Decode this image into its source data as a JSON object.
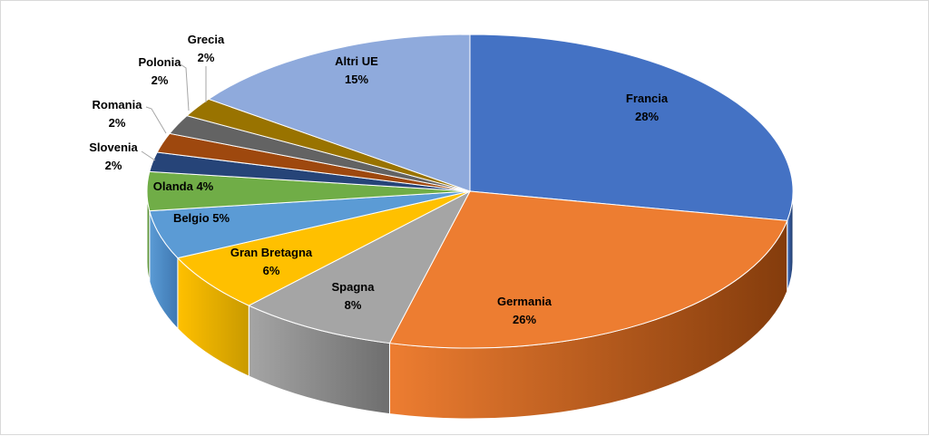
{
  "chart_data": {
    "type": "pie",
    "three_d": true,
    "legend": "none",
    "slices": [
      {
        "name": "Francia",
        "value": 28,
        "label_line1": "Francia",
        "label_line2": "28%",
        "color": "#4472C4",
        "side_color": "#1F3864"
      },
      {
        "name": "Germania",
        "value": 26,
        "label_line1": "Germania",
        "label_line2": "26%",
        "color": "#ED7D31",
        "side_color": "#843C0C"
      },
      {
        "name": "Spagna",
        "value": 8,
        "label_line1": "Spagna",
        "label_line2": "8%",
        "color": "#A5A5A5",
        "side_color": "#6E6E6E"
      },
      {
        "name": "Gran Bretagna",
        "value": 6,
        "label_line1": "Gran Bretagna",
        "label_line2": "6%",
        "color": "#FFC000",
        "side_color": "#C99A00"
      },
      {
        "name": "Belgio",
        "value": 5,
        "label_line1": "Belgio 5%",
        "label_line2": "",
        "color": "#5B9BD5",
        "side_color": "#3E78B2"
      },
      {
        "name": "Olanda",
        "value": 4,
        "label_line1": "Olanda 4%",
        "label_line2": "",
        "color": "#70AD47",
        "side_color": "#507E32"
      },
      {
        "name": "Slovenia",
        "value": 2,
        "label_line1": "Slovenia",
        "label_line2": "2%",
        "color": "#264478",
        "side_color": "#172A4A"
      },
      {
        "name": "Romania",
        "value": 2,
        "label_line1": "Romania",
        "label_line2": "2%",
        "color": "#9E480E",
        "side_color": "#6A3009"
      },
      {
        "name": "Polonia",
        "value": 2,
        "label_line1": "Polonia",
        "label_line2": "2%",
        "color": "#636363",
        "side_color": "#404040"
      },
      {
        "name": "Grecia",
        "value": 2,
        "label_line1": "Grecia",
        "label_line2": "2%",
        "color": "#997300",
        "side_color": "#664D00"
      },
      {
        "name": "Altri UE",
        "value": 15,
        "label_line1": "Altri UE",
        "label_line2": "15%",
        "color": "#8FAADC",
        "side_color": "#6A86B8"
      }
    ]
  }
}
